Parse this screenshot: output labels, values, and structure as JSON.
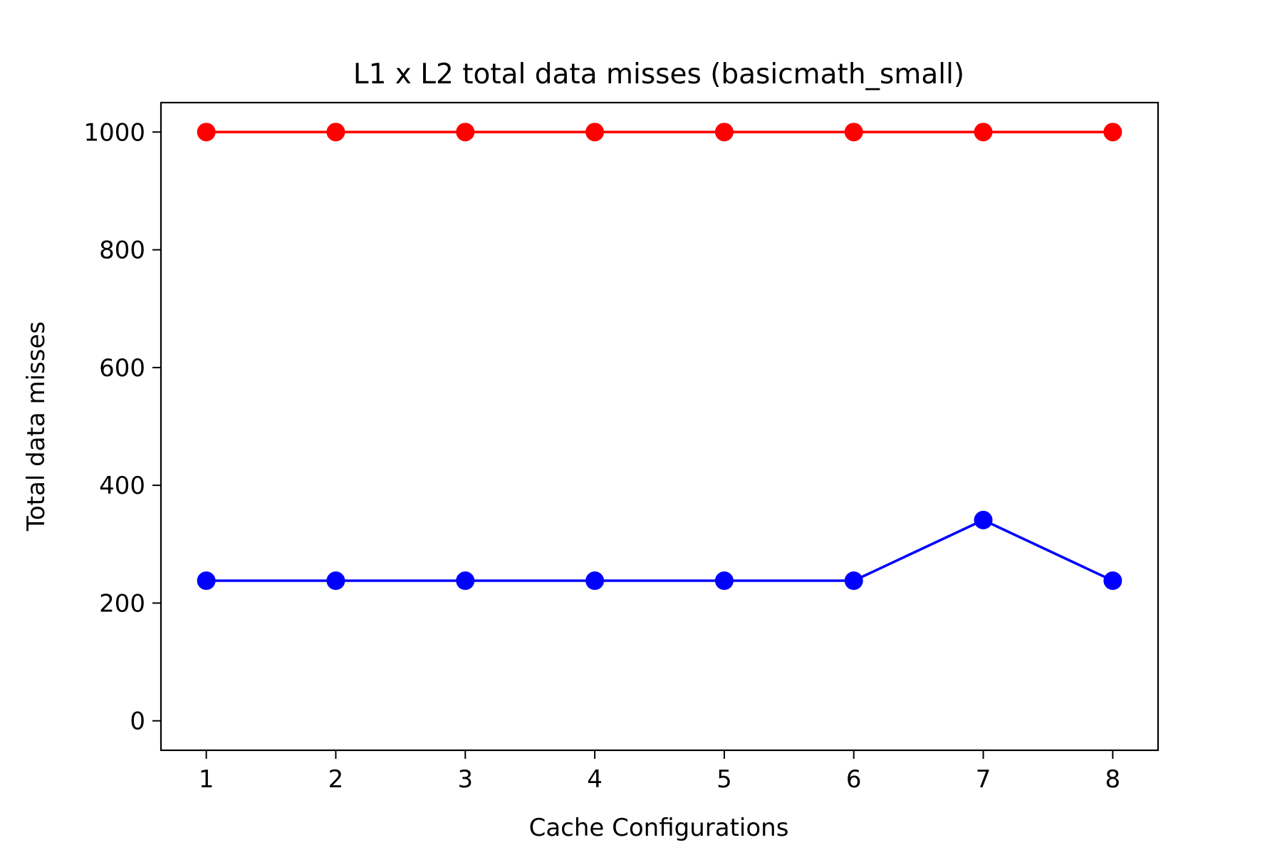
{
  "chart_data": {
    "type": "line",
    "title": "L1 x L2 total data misses (basicmath_small)",
    "xlabel": "Cache Configurations",
    "ylabel": "Total data misses",
    "x": [
      1,
      2,
      3,
      4,
      5,
      6,
      7,
      8
    ],
    "xticks": [
      "1",
      "2",
      "3",
      "4",
      "5",
      "6",
      "7",
      "8"
    ],
    "yticks": [
      0,
      200,
      400,
      600,
      800,
      1000
    ],
    "xlim": [
      0.65,
      8.35
    ],
    "ylim": [
      -50,
      1050
    ],
    "grid": false,
    "legend": "none",
    "series": [
      {
        "color": "#ff0000",
        "marker": "circle",
        "values": [
          1000,
          1000,
          1000,
          1000,
          1000,
          1000,
          1000,
          1000
        ]
      },
      {
        "color": "#0000ff",
        "marker": "circle",
        "values": [
          238,
          238,
          238,
          238,
          238,
          238,
          341,
          238
        ]
      }
    ]
  }
}
